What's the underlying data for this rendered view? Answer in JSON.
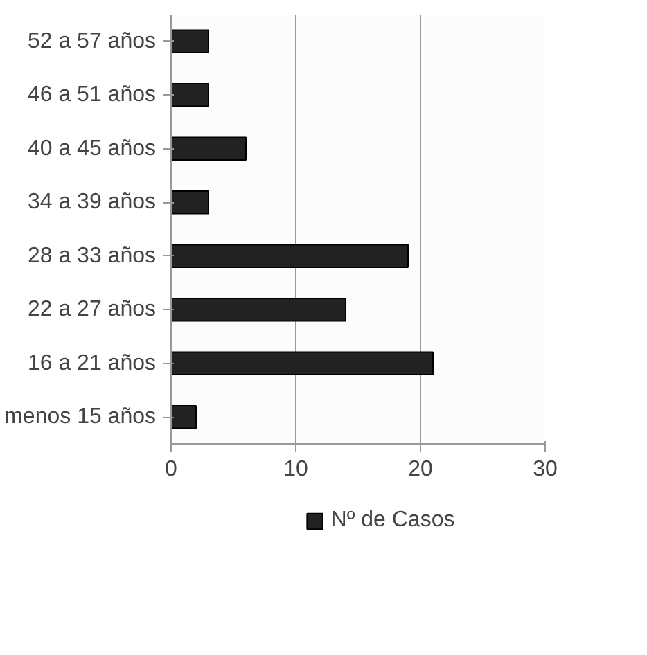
{
  "chart_data": {
    "type": "bar",
    "orientation": "horizontal",
    "categories": [
      "52 a 57 años",
      "46 a 51 años",
      "40 a 45 años",
      "34 a 39 años",
      "28 a 33 años",
      "22 a 27 años",
      "16 a 21 años",
      "menos 15 años"
    ],
    "series": [
      {
        "name": "Nº de Casos",
        "color": "#222222",
        "values": [
          3,
          3,
          6,
          3,
          19,
          14,
          21,
          2
        ]
      }
    ],
    "xlim": [
      0,
      30
    ],
    "xticks": [
      0,
      10,
      20,
      30
    ],
    "grid": "x",
    "legend": "bottom"
  }
}
